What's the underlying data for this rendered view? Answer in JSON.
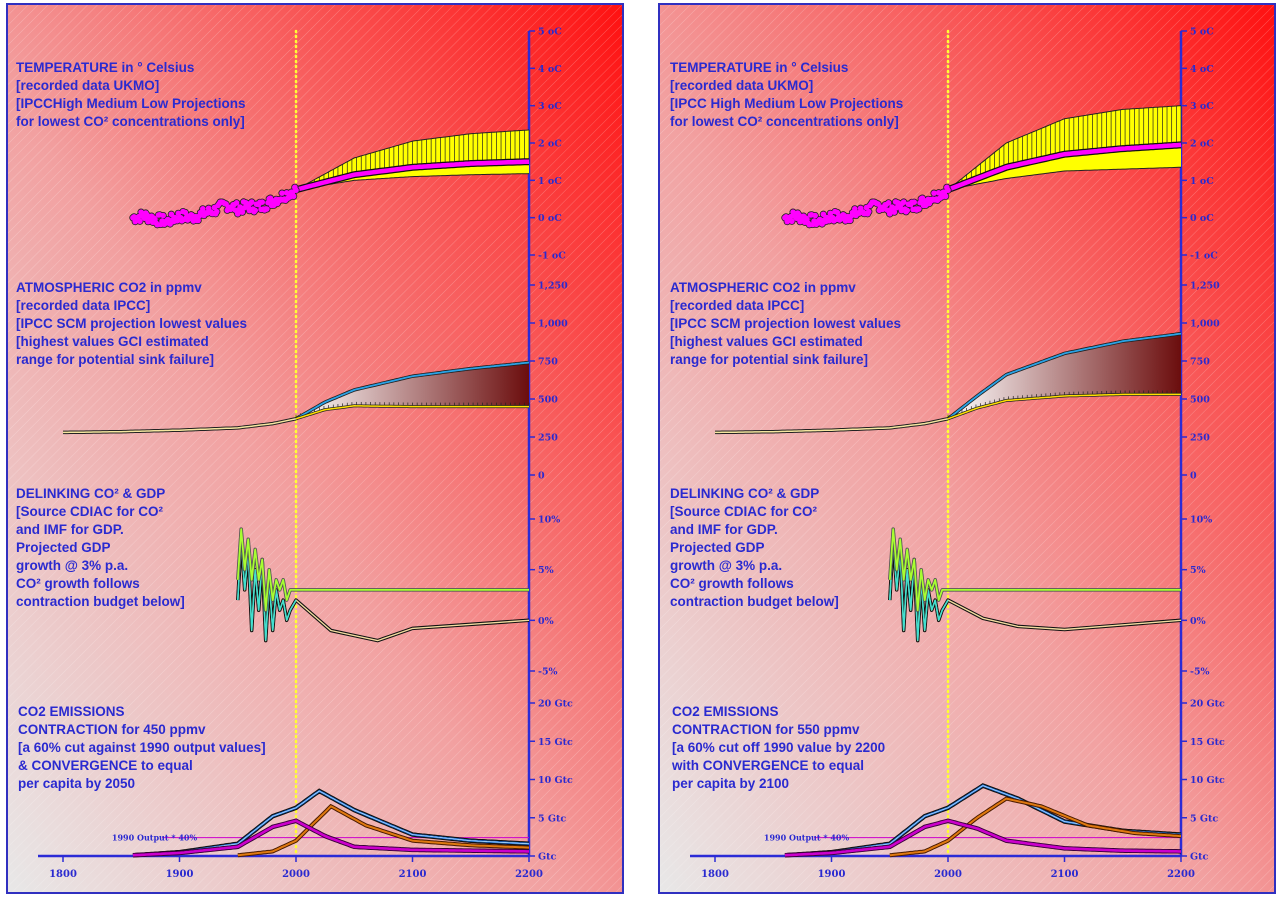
{
  "colors": {
    "axis": "#2b2bd6",
    "text": "#2a2ad0",
    "gradient_from": "#ff1010",
    "gradient_to": "#e8e8e8",
    "divider": "#ffff33",
    "temperature_line": "#ff00ff",
    "band_fill": "#ffff00",
    "co2_upper": "#2aa3e6",
    "gdp_line": "#a8ff30",
    "co2_growth_line": "#40e0d0",
    "contraction_line": "#cc00cc",
    "convergence_line": "#e07a10",
    "total_emissions_line": "#1e6ed6"
  },
  "shared": {
    "x_ticks": [
      "1800",
      "1900",
      "2000",
      "2100",
      "2200"
    ],
    "temp_ticks": [
      "5 oC",
      "4 oC",
      "3 oC",
      "2 oC",
      "1 oC",
      "0 oC",
      "-1 oC"
    ],
    "co2_ticks": [
      "1,250",
      "1,000",
      "750",
      "500",
      "250",
      "0"
    ],
    "gdp_ticks": [
      "10%",
      "5%",
      "0%",
      "-5%"
    ],
    "emissions_ticks": [
      "20 Gtc",
      "15 Gtc",
      "10 Gtc",
      "5 Gtc",
      "Gtc"
    ],
    "ref_label": "1990 Output * 40%"
  },
  "left": {
    "temperature": {
      "line1": "TEMPERATURE  in ° Celsius",
      "line2": "[recorded data UKMO]",
      "line3": "[IPCCHigh Medium Low Projections",
      "line4": "for lowest CO² concentrations only]"
    },
    "co2": {
      "line1": "ATMOSPHERIC CO2 in ppmv",
      "line2": "[recorded data IPCC]",
      "line3": "[IPCC SCM projection lowest values",
      "line4": "[highest values GCI estimated",
      "line5": "range for potential sink failure]"
    },
    "gdp": {
      "line1": "DELINKING CO² & GDP",
      "line2": "[Source CDIAC for CO²",
      "line3": "and IMF for GDP.",
      "line4": "Projected GDP",
      "line5": "growth @ 3% p.a.",
      "line6": "CO² growth follows",
      "line7": "contraction budget below]"
    },
    "emissions": {
      "line1": "CO2 EMISSIONS",
      "line2": "CONTRACTION for 450 ppmv",
      "line3": "[a 60% cut against 1990 output values]",
      "line4": "& CONVERGENCE to equal",
      "line5": "per capita by 2050"
    }
  },
  "right": {
    "temperature": {
      "line1": "TEMPERATURE  in ° Celsius",
      "line2": "[recorded data UKMO]",
      "line3": "[IPCC High Medium Low Projections",
      "line4": "for lowest CO² concentrations only]"
    },
    "co2": {
      "line1": "ATMOSPHERIC CO2 in ppmv",
      "line2": "[recorded data IPCC]",
      "line3": "[IPCC SCM projection lowest values",
      "line4": "[highest values GCI estimated",
      "line5": "range for potential sink failure]"
    },
    "gdp": {
      "line1": "DELINKING CO² & GDP",
      "line2": "[Source CDIAC for CO²",
      "line3": "and IMF for GDP.",
      "line4": "Projected GDP",
      "line5": "growth @ 3% p.a.",
      "line6": "CO² growth follows",
      "line7": "contraction budget below]"
    },
    "emissions": {
      "line1": "CO2 EMISSIONS",
      "line2": "CONTRACTION for 550 ppmv",
      "line3": "[a 60% cut off 1990 value by 2200",
      "line4": "with CONVERGENCE to equal",
      "line5": "per capita by 2100"
    }
  },
  "chart_data": [
    {
      "panel": "left",
      "type": "line",
      "x_range": [
        1800,
        2200
      ],
      "divider_x": 2000,
      "temperature": {
        "unit": "oC",
        "ylim": [
          -1,
          5
        ],
        "recorded": {
          "x": [
            1860,
            1870,
            1880,
            1890,
            1900,
            1910,
            1920,
            1930,
            1940,
            1950,
            1960,
            1970,
            1980,
            1990,
            2000
          ],
          "y": [
            0.0,
            0.05,
            -0.05,
            -0.1,
            0.05,
            0.0,
            0.1,
            0.2,
            0.35,
            0.25,
            0.3,
            0.3,
            0.45,
            0.6,
            0.75
          ]
        },
        "projection": {
          "x": [
            2000,
            2050,
            2100,
            2150,
            2200
          ],
          "high": [
            0.75,
            1.6,
            2.05,
            2.25,
            2.35
          ],
          "mid": [
            0.75,
            1.15,
            1.35,
            1.45,
            1.5
          ],
          "low": [
            0.75,
            1.0,
            1.1,
            1.15,
            1.18
          ]
        }
      },
      "co2": {
        "unit": "ppmv",
        "ylim": [
          0,
          1250
        ],
        "recorded": {
          "x": [
            1800,
            1850,
            1900,
            1950,
            1980,
            2000
          ],
          "y": [
            280,
            285,
            295,
            310,
            338,
            370
          ]
        },
        "projection": {
          "x": [
            2000,
            2025,
            2050,
            2100,
            2150,
            2200
          ],
          "high": [
            370,
            480,
            560,
            650,
            700,
            740
          ],
          "low": [
            370,
            430,
            455,
            450,
            450,
            450
          ]
        }
      },
      "gdp": {
        "unit": "%",
        "ylim": [
          -5,
          10
        ],
        "gdp_growth": {
          "x": [
            1950,
            1953,
            1956,
            1959,
            1962,
            1965,
            1968,
            1971,
            1974,
            1977,
            1980,
            1983,
            1986,
            1989,
            1992,
            1995,
            2000,
            2200
          ],
          "y": [
            4,
            9,
            5,
            8,
            4,
            7,
            4,
            6,
            1,
            5,
            2,
            4,
            3,
            4,
            2,
            3,
            3,
            3
          ]
        },
        "co2_growth": {
          "x": [
            1950,
            1953,
            1956,
            1959,
            1962,
            1965,
            1968,
            1971,
            1974,
            1977,
            1980,
            1983,
            1986,
            1989,
            1992,
            1995,
            2000,
            2030,
            2070,
            2100,
            2200
          ],
          "y": [
            2,
            8,
            3,
            7,
            -1,
            5,
            1,
            6,
            -2,
            4,
            -1,
            3,
            1,
            2,
            0,
            1,
            2,
            -1.0,
            -2.0,
            -0.8,
            0
          ]
        }
      },
      "emissions": {
        "unit": "Gtc",
        "ylim": [
          0,
          20
        ],
        "reference_value": 2.4,
        "total": {
          "x": [
            1860,
            1900,
            1950,
            1980,
            2000,
            2020,
            2050,
            2100,
            2150,
            2200
          ],
          "y": [
            0.1,
            0.5,
            1.6,
            5.2,
            6.3,
            8.5,
            6.0,
            2.8,
            2.0,
            1.6
          ]
        },
        "contraction": {
          "x": [
            1860,
            1900,
            1950,
            1980,
            2000,
            2025,
            2050,
            2100,
            2150,
            2200
          ],
          "y": [
            0.1,
            0.4,
            1.2,
            3.8,
            4.6,
            2.6,
            1.2,
            0.8,
            0.7,
            0.6
          ]
        },
        "convergence": {
          "x": [
            1950,
            1980,
            2000,
            2030,
            2060,
            2100,
            2150,
            2200
          ],
          "y": [
            0.1,
            0.6,
            2.0,
            6.5,
            4.0,
            2.0,
            1.4,
            1.1
          ]
        }
      }
    },
    {
      "panel": "right",
      "type": "line",
      "x_range": [
        1800,
        2200
      ],
      "divider_x": 2000,
      "temperature": {
        "unit": "oC",
        "ylim": [
          -1,
          5
        ],
        "recorded": {
          "x": [
            1860,
            1870,
            1880,
            1890,
            1900,
            1910,
            1920,
            1930,
            1940,
            1950,
            1960,
            1970,
            1980,
            1990,
            2000
          ],
          "y": [
            0.0,
            0.05,
            -0.05,
            -0.1,
            0.05,
            0.0,
            0.1,
            0.2,
            0.35,
            0.25,
            0.3,
            0.3,
            0.45,
            0.6,
            0.75
          ]
        },
        "projection": {
          "x": [
            2000,
            2050,
            2100,
            2150,
            2200
          ],
          "high": [
            0.75,
            2.0,
            2.65,
            2.9,
            3.0
          ],
          "mid": [
            0.75,
            1.35,
            1.7,
            1.85,
            1.95
          ],
          "low": [
            0.75,
            1.05,
            1.25,
            1.3,
            1.35
          ]
        }
      },
      "co2": {
        "unit": "ppmv",
        "ylim": [
          0,
          1250
        ],
        "recorded": {
          "x": [
            1800,
            1850,
            1900,
            1950,
            1980,
            2000
          ],
          "y": [
            280,
            285,
            295,
            310,
            338,
            370
          ]
        },
        "projection": {
          "x": [
            2000,
            2025,
            2050,
            2100,
            2150,
            2200
          ],
          "high": [
            370,
            520,
            660,
            800,
            880,
            930
          ],
          "low": [
            370,
            440,
            490,
            520,
            530,
            530
          ]
        }
      },
      "gdp": {
        "unit": "%",
        "ylim": [
          -5,
          10
        ],
        "gdp_growth": {
          "x": [
            1950,
            1953,
            1956,
            1959,
            1962,
            1965,
            1968,
            1971,
            1974,
            1977,
            1980,
            1983,
            1986,
            1989,
            1992,
            1995,
            2000,
            2200
          ],
          "y": [
            4,
            9,
            5,
            8,
            4,
            7,
            4,
            6,
            1,
            5,
            2,
            4,
            3,
            4,
            2,
            3,
            3,
            3
          ]
        },
        "co2_growth": {
          "x": [
            1950,
            1953,
            1956,
            1959,
            1962,
            1965,
            1968,
            1971,
            1974,
            1977,
            1980,
            1983,
            1986,
            1989,
            1992,
            1995,
            2000,
            2030,
            2060,
            2100,
            2200
          ],
          "y": [
            2,
            8,
            3,
            7,
            -1,
            5,
            1,
            6,
            -2,
            4,
            -1,
            3,
            1,
            2,
            0,
            1,
            2,
            0.2,
            -0.6,
            -0.9,
            0
          ]
        }
      },
      "emissions": {
        "unit": "Gtc",
        "ylim": [
          0,
          20
        ],
        "reference_value": 2.4,
        "total": {
          "x": [
            1860,
            1900,
            1950,
            1980,
            2000,
            2030,
            2060,
            2100,
            2150,
            2200
          ],
          "y": [
            0.1,
            0.5,
            1.6,
            5.2,
            6.3,
            9.2,
            7.5,
            4.5,
            3.3,
            2.8
          ]
        },
        "contraction": {
          "x": [
            1860,
            1900,
            1950,
            1980,
            2000,
            2025,
            2050,
            2100,
            2150,
            2200
          ],
          "y": [
            0.1,
            0.4,
            1.2,
            3.8,
            4.6,
            3.6,
            2.0,
            1.0,
            0.7,
            0.6
          ]
        },
        "convergence": {
          "x": [
            1950,
            1980,
            2000,
            2025,
            2050,
            2080,
            2120,
            2160,
            2200
          ],
          "y": [
            0.1,
            0.6,
            2.0,
            5.0,
            7.5,
            6.5,
            4.0,
            3.0,
            2.6
          ]
        }
      }
    }
  ]
}
